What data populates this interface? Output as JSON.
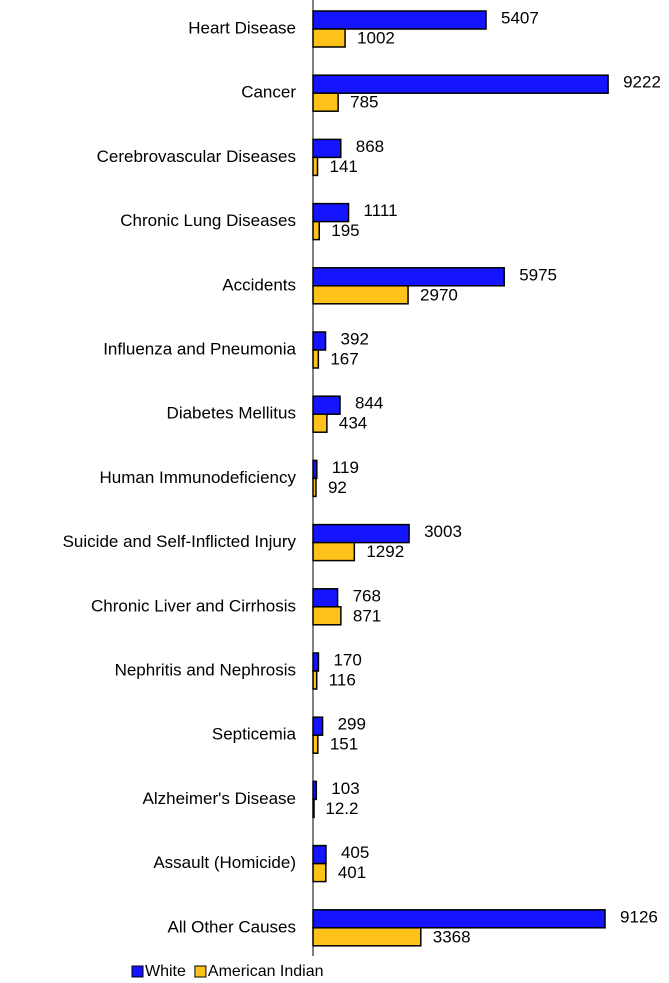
{
  "chart_data": {
    "type": "bar",
    "orientation": "horizontal",
    "categories": [
      "Heart Disease",
      "Cancer",
      "Cerebrovascular Diseases",
      "Chronic Lung Diseases",
      "Accidents",
      "Influenza and Pneumonia",
      "Diabetes Mellitus",
      "Human Immunodeficiency",
      "Suicide and Self-Inflicted Injury",
      "Chronic Liver and Cirrhosis",
      "Nephritis and Nephrosis",
      "Septicemia",
      "Alzheimer's Disease",
      "Assault (Homicide)",
      "All Other Causes"
    ],
    "series": [
      {
        "name": "White",
        "color": "#1414ff",
        "values": [
          5407,
          9222,
          868,
          1111,
          5975,
          392,
          844,
          119,
          3003,
          768,
          170,
          299,
          103,
          405,
          9126
        ]
      },
      {
        "name": "American Indian",
        "color": "#ffc21a",
        "values": [
          1002,
          785,
          141,
          195,
          2970,
          167,
          434,
          92,
          1292,
          871,
          116,
          151,
          12.2,
          401,
          3368
        ]
      }
    ],
    "xlim": [
      0,
      10000
    ],
    "legend": "bottom"
  }
}
